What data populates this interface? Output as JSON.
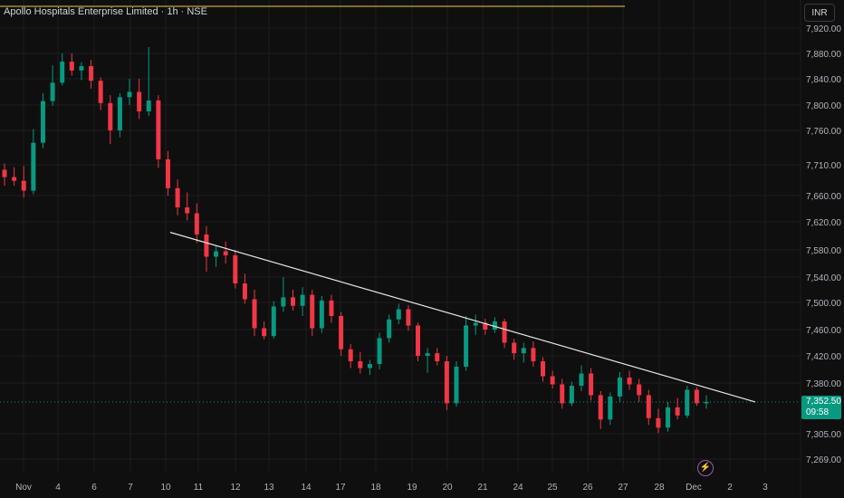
{
  "header": {
    "title": "Apollo Hospitals Enterprise Limited · 1h · NSE",
    "currency": "INR"
  },
  "last_price": {
    "value": "7,352.50",
    "countdown": "09:58"
  },
  "colors": {
    "up": "#089981",
    "down": "#f23645",
    "background": "#0f0f0f",
    "grid": "#1d1d1d",
    "trendline": "#e6e6e6",
    "title_rule": "#f0c64b"
  },
  "icons": {
    "alert": "lightning-icon"
  },
  "chart_data": {
    "type": "candlestick",
    "title": "Apollo Hospitals Enterprise Limited · 1h · NSE",
    "y_ticks": [
      "7,920.00",
      "7,880.00",
      "7,840.00",
      "7,800.00",
      "7,760.00",
      "7,710.00",
      "7,660.00",
      "7,620.00",
      "7,580.00",
      "7,540.00",
      "7,500.00",
      "7,460.00",
      "7,420.00",
      "7,380.00",
      "7,305.00",
      "7,269.00"
    ],
    "x_ticks": [
      "Nov",
      "4",
      "6",
      "7",
      "10",
      "11",
      "12",
      "13",
      "14",
      "17",
      "18",
      "19",
      "20",
      "21",
      "24",
      "25",
      "26",
      "27",
      "28",
      "Dec",
      "2",
      "3"
    ],
    "grid": true,
    "trendline": {
      "from": {
        "date": "10",
        "price": 7605
      },
      "to": {
        "date": "2",
        "price": 7352
      }
    },
    "series": [
      {
        "name": "OHLC",
        "values": [
          [
            7702,
            7712,
            7676,
            7690
          ],
          [
            7690,
            7706,
            7676,
            7684
          ],
          [
            7684,
            7708,
            7657,
            7668
          ],
          [
            7668,
            7762,
            7662,
            7742
          ],
          [
            7742,
            7818,
            7734,
            7806
          ],
          [
            7806,
            7861,
            7799,
            7834
          ],
          [
            7834,
            7880,
            7830,
            7867
          ],
          [
            7867,
            7880,
            7845,
            7853
          ],
          [
            7853,
            7866,
            7838,
            7860
          ],
          [
            7860,
            7870,
            7825,
            7837
          ],
          [
            7837,
            7842,
            7792,
            7803
          ],
          [
            7803,
            7815,
            7740,
            7760
          ],
          [
            7760,
            7818,
            7750,
            7812
          ],
          [
            7812,
            7840,
            7800,
            7820
          ],
          [
            7820,
            7840,
            7778,
            7790
          ],
          [
            7790,
            7890,
            7783,
            7807
          ],
          [
            7807,
            7815,
            7705,
            7718
          ],
          [
            7718,
            7730,
            7660,
            7672
          ],
          [
            7672,
            7686,
            7630,
            7642
          ],
          [
            7642,
            7665,
            7622,
            7633
          ],
          [
            7633,
            7648,
            7590,
            7602
          ],
          [
            7602,
            7614,
            7548,
            7570
          ],
          [
            7570,
            7586,
            7555,
            7578
          ],
          [
            7578,
            7592,
            7560,
            7572
          ],
          [
            7572,
            7580,
            7522,
            7530
          ],
          [
            7530,
            7545,
            7498,
            7505
          ],
          [
            7505,
            7520,
            7450,
            7462
          ],
          [
            7462,
            7472,
            7445,
            7450
          ],
          [
            7450,
            7502,
            7446,
            7494
          ],
          [
            7494,
            7540,
            7486,
            7508
          ],
          [
            7508,
            7520,
            7488,
            7495
          ],
          [
            7495,
            7524,
            7480,
            7512
          ],
          [
            7512,
            7520,
            7450,
            7462
          ],
          [
            7462,
            7510,
            7455,
            7503
          ],
          [
            7503,
            7512,
            7470,
            7480
          ],
          [
            7480,
            7486,
            7420,
            7430
          ],
          [
            7430,
            7438,
            7402,
            7412
          ],
          [
            7412,
            7426,
            7394,
            7402
          ],
          [
            7402,
            7414,
            7392,
            7408
          ],
          [
            7408,
            7455,
            7400,
            7447
          ],
          [
            7447,
            7482,
            7440,
            7475
          ],
          [
            7475,
            7498,
            7468,
            7490
          ],
          [
            7490,
            7496,
            7458,
            7466
          ],
          [
            7466,
            7470,
            7412,
            7420
          ],
          [
            7420,
            7432,
            7395,
            7424
          ],
          [
            7424,
            7432,
            7406,
            7412
          ],
          [
            7412,
            7420,
            7340,
            7350
          ],
          [
            7350,
            7412,
            7345,
            7404
          ],
          [
            7404,
            7480,
            7398,
            7466
          ],
          [
            7466,
            7482,
            7452,
            7470
          ],
          [
            7470,
            7476,
            7452,
            7460
          ],
          [
            7460,
            7478,
            7455,
            7472
          ],
          [
            7472,
            7476,
            7432,
            7440
          ],
          [
            7440,
            7446,
            7414,
            7424
          ],
          [
            7424,
            7440,
            7410,
            7432
          ],
          [
            7432,
            7442,
            7404,
            7412
          ],
          [
            7412,
            7418,
            7382,
            7390
          ],
          [
            7390,
            7398,
            7372,
            7378
          ],
          [
            7378,
            7386,
            7342,
            7350
          ],
          [
            7350,
            7382,
            7346,
            7376
          ],
          [
            7376,
            7406,
            7368,
            7394
          ],
          [
            7394,
            7402,
            7354,
            7362
          ],
          [
            7362,
            7368,
            7312,
            7326
          ],
          [
            7326,
            7366,
            7318,
            7360
          ],
          [
            7360,
            7396,
            7352,
            7388
          ],
          [
            7388,
            7398,
            7370,
            7378
          ],
          [
            7378,
            7386,
            7352,
            7362
          ],
          [
            7362,
            7370,
            7318,
            7328
          ],
          [
            7328,
            7342,
            7306,
            7314
          ],
          [
            7314,
            7352,
            7308,
            7344
          ],
          [
            7344,
            7358,
            7326,
            7332
          ],
          [
            7332,
            7376,
            7328,
            7370
          ],
          [
            7370,
            7374,
            7346,
            7350
          ],
          [
            7350,
            7362,
            7342,
            7352
          ]
        ]
      }
    ]
  }
}
